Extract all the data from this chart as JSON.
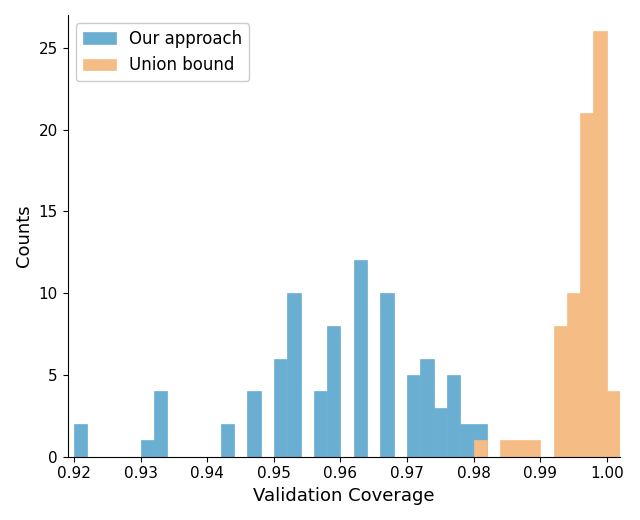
{
  "title": "",
  "xlabel": "Validation Coverage",
  "ylabel": "Counts",
  "xlim": [
    0.919,
    1.002
  ],
  "ylim": [
    0,
    27
  ],
  "yticks": [
    0,
    5,
    10,
    15,
    20,
    25
  ],
  "blue_color": "#6aafd2",
  "orange_color": "#f5bc85",
  "blue_label": "Our approach",
  "orange_label": "Union bound",
  "blue_bin_edges": [
    0.92,
    0.922,
    0.924,
    0.926,
    0.928,
    0.93,
    0.932,
    0.934,
    0.936,
    0.938,
    0.94,
    0.942,
    0.944,
    0.946,
    0.948,
    0.95,
    0.952,
    0.954,
    0.956,
    0.958,
    0.96,
    0.962,
    0.964,
    0.966,
    0.968,
    0.97,
    0.972,
    0.974,
    0.976,
    0.978,
    0.98
  ],
  "blue_counts": [
    2,
    0,
    0,
    0,
    0,
    1,
    4,
    0,
    0,
    0,
    0,
    2,
    0,
    4,
    0,
    6,
    10,
    0,
    4,
    8,
    0,
    12,
    0,
    10,
    0,
    5,
    6,
    3,
    5,
    2,
    2
  ],
  "orange_bin_edges": [
    0.98,
    0.982,
    0.984,
    0.986,
    0.988,
    0.99,
    0.992,
    0.994,
    0.996,
    0.998,
    1.0
  ],
  "orange_counts": [
    1,
    0,
    1,
    1,
    1,
    0,
    8,
    10,
    21,
    26,
    4
  ]
}
